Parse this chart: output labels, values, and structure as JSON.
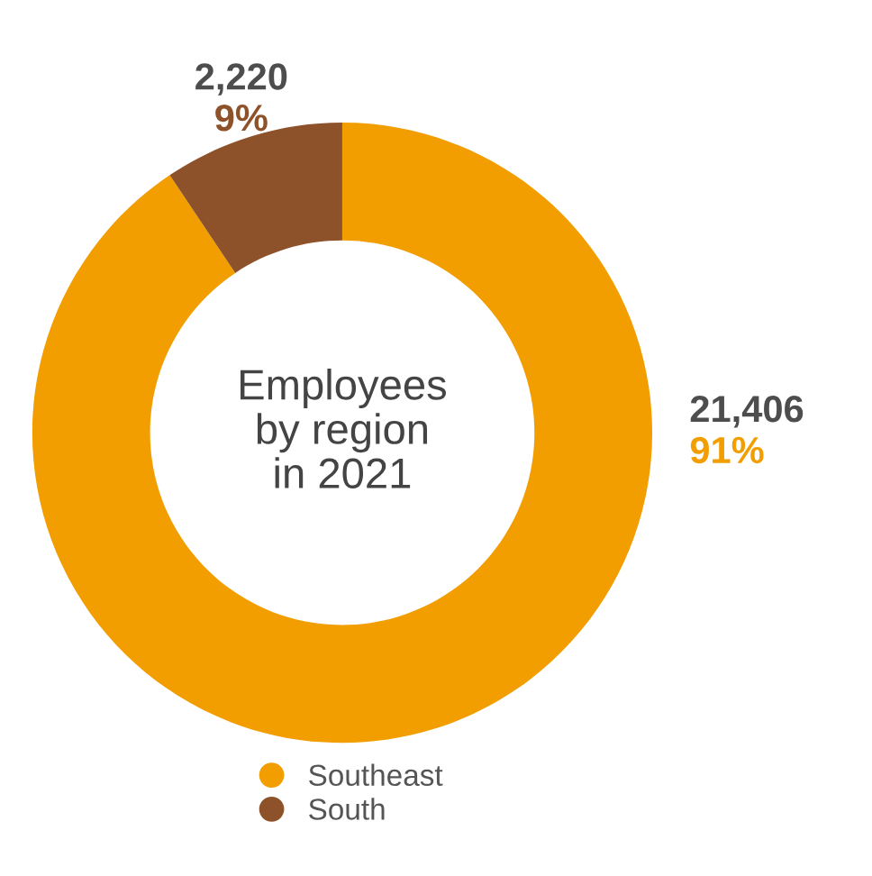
{
  "chart_data": {
    "type": "donut",
    "title": "Employees\nby region\nin 2021",
    "categories": [
      "Southeast",
      "South"
    ],
    "values": [
      21406,
      2220
    ],
    "colors": [
      "#f29d00",
      "#8e522a"
    ],
    "value_labels": [
      "21,406",
      "2,220"
    ],
    "annotations": [
      "91%",
      "9%"
    ],
    "legend": "bottom"
  }
}
